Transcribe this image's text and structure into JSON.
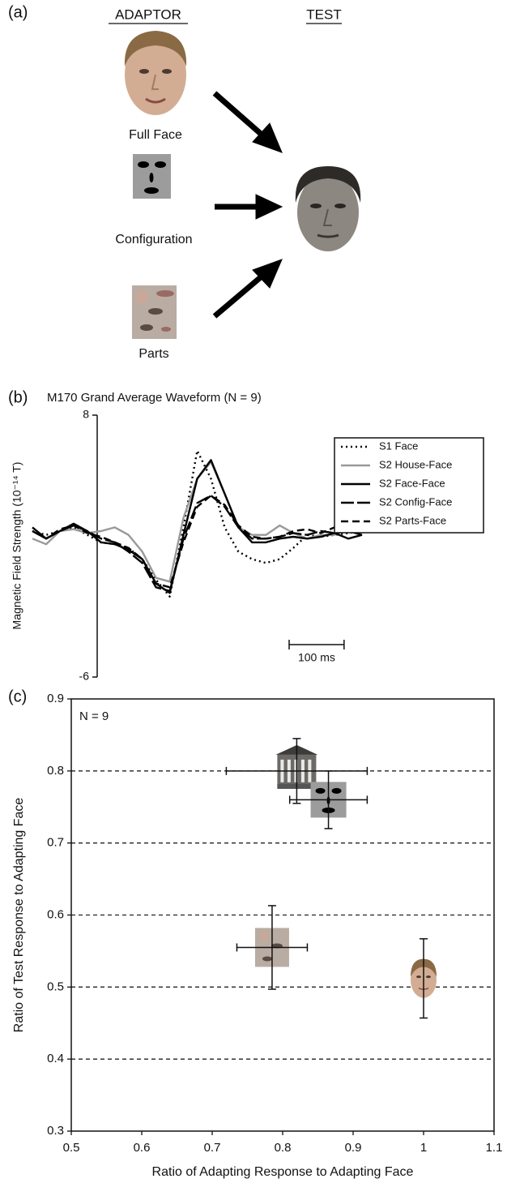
{
  "panel_a": {
    "label": "(a)",
    "adaptor_heading": "ADAPTOR",
    "test_heading": "TEST",
    "adaptors": [
      "Full Face",
      "Configuration",
      "Parts"
    ]
  },
  "chart_data": [
    {
      "type": "line",
      "panel_label": "(b)",
      "title": "M170 Grand Average Waveform (N = 9)",
      "ylabel": "Magnetic Field Strength (10⁻¹⁴ T)",
      "x": [
        0,
        25,
        50,
        75,
        100,
        125,
        150,
        175,
        200,
        225,
        250,
        275,
        300,
        325,
        350,
        375,
        400,
        425,
        450,
        475,
        500,
        525,
        550,
        575,
        600
      ],
      "xlim": [
        0,
        600
      ],
      "ylim": [
        -6,
        8
      ],
      "yticks": [
        -6,
        8
      ],
      "scale_bar": {
        "value": 100,
        "label": "100 ms"
      },
      "series": [
        {
          "name": "S1 Face",
          "color": "#000000",
          "dash": "dotted",
          "values": [
            1.8,
            1.6,
            1.8,
            2.0,
            1.6,
            1.2,
            1.1,
            0.9,
            0.3,
            -0.8,
            -1.7,
            2.0,
            6.1,
            4.6,
            2.0,
            0.7,
            0.3,
            0.1,
            0.3,
            0.9,
            1.6,
            1.5,
            1.6,
            1.7,
            1.8
          ]
        },
        {
          "name": "S2 House-Face",
          "color": "#999999",
          "dash": "solid",
          "values": [
            1.4,
            1.1,
            1.8,
            1.9,
            1.7,
            1.8,
            2.0,
            1.6,
            0.7,
            -0.7,
            -0.9,
            2.5,
            4.6,
            5.5,
            3.8,
            2.0,
            1.6,
            1.6,
            2.1,
            1.7,
            1.4,
            1.6,
            1.6,
            1.9,
            2.1
          ]
        },
        {
          "name": "S2 Face-Face",
          "color": "#000000",
          "dash": "solid",
          "values": [
            2.0,
            1.4,
            1.8,
            2.2,
            1.8,
            1.2,
            1.1,
            0.8,
            0.3,
            -1.0,
            -1.5,
            1.6,
            4.6,
            5.6,
            3.8,
            2.0,
            1.2,
            1.2,
            1.4,
            1.5,
            1.4,
            1.5,
            1.7,
            1.4,
            1.6
          ]
        },
        {
          "name": "S2 Config-Face",
          "color": "#000000",
          "dash": "longdash",
          "values": [
            1.8,
            1.4,
            1.8,
            2.1,
            1.8,
            1.4,
            1.2,
            0.7,
            0.1,
            -1.2,
            -1.4,
            1.4,
            3.3,
            3.7,
            3.1,
            2.0,
            1.4,
            1.4,
            1.5,
            1.7,
            1.6,
            1.8,
            1.7,
            1.8,
            1.6
          ]
        },
        {
          "name": "S2 Parts-Face",
          "color": "#000000",
          "dash": "dashed",
          "values": [
            1.8,
            1.4,
            1.9,
            2.1,
            1.7,
            1.5,
            1.2,
            0.9,
            0.3,
            -1.0,
            -1.2,
            1.2,
            3.1,
            3.7,
            3.2,
            2.1,
            1.5,
            1.4,
            1.5,
            1.8,
            1.9,
            1.7,
            2.0,
            1.8,
            2.0
          ]
        }
      ]
    },
    {
      "type": "scatter",
      "panel_label": "(c)",
      "annotation": "N = 9",
      "xlabel": "Ratio of Adapting Response to Adapting Face",
      "ylabel": "Ratio of Test Response to Adapting Face",
      "xlim": [
        0.5,
        1.1
      ],
      "ylim": [
        0.3,
        0.9
      ],
      "xticks": [
        0.5,
        0.6,
        0.7,
        0.8,
        0.9,
        1,
        1.1
      ],
      "yticks": [
        0.3,
        0.4,
        0.5,
        0.6,
        0.7,
        0.8,
        0.9
      ],
      "grid": true,
      "points": [
        {
          "marker": "house",
          "x": 0.82,
          "y": 0.8,
          "xerr": 0.1,
          "yerr": 0.045
        },
        {
          "marker": "configuration",
          "x": 0.865,
          "y": 0.76,
          "xerr": 0.055,
          "yerr": 0.04
        },
        {
          "marker": "parts",
          "x": 0.785,
          "y": 0.555,
          "xerr": 0.05,
          "yerr": 0.058
        },
        {
          "marker": "face",
          "x": 1,
          "y": 0.512,
          "xerr": null,
          "yerr": 0.055
        }
      ]
    }
  ]
}
